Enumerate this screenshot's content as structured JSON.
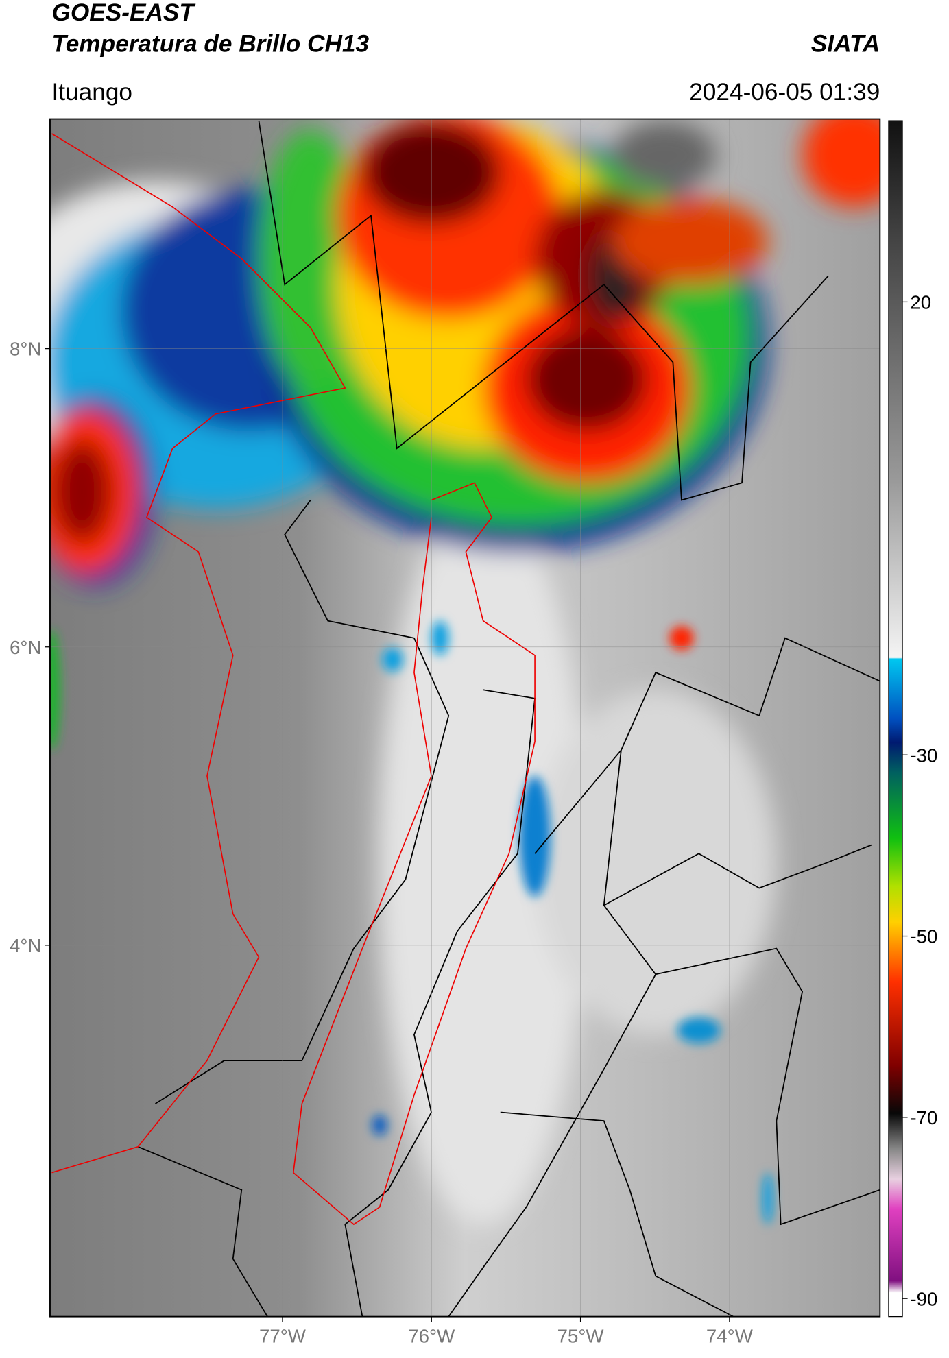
{
  "map": {
    "title": "GOES-EAST",
    "subtitle": "Temperatura de Brillo CH13",
    "source": "SIATA",
    "location": "Ituango",
    "datetime": "2024-06-05 01:39",
    "xlim": [
      -78.56,
      -72.99
    ],
    "ylim": [
      1.51,
      9.54
    ],
    "xticks": [
      {
        "value": -77,
        "label": "77°W"
      },
      {
        "value": -76,
        "label": "76°W"
      },
      {
        "value": -75,
        "label": "75°W"
      },
      {
        "value": -74,
        "label": "74°W"
      }
    ],
    "yticks": [
      {
        "value": 4,
        "label": "4°N"
      },
      {
        "value": 6,
        "label": "6°N"
      },
      {
        "value": 8,
        "label": "8°N"
      }
    ],
    "colorbar": {
      "lim": [
        -92,
        40
      ],
      "ticks": [
        -90,
        -70,
        -50,
        -30,
        20
      ]
    }
  }
}
